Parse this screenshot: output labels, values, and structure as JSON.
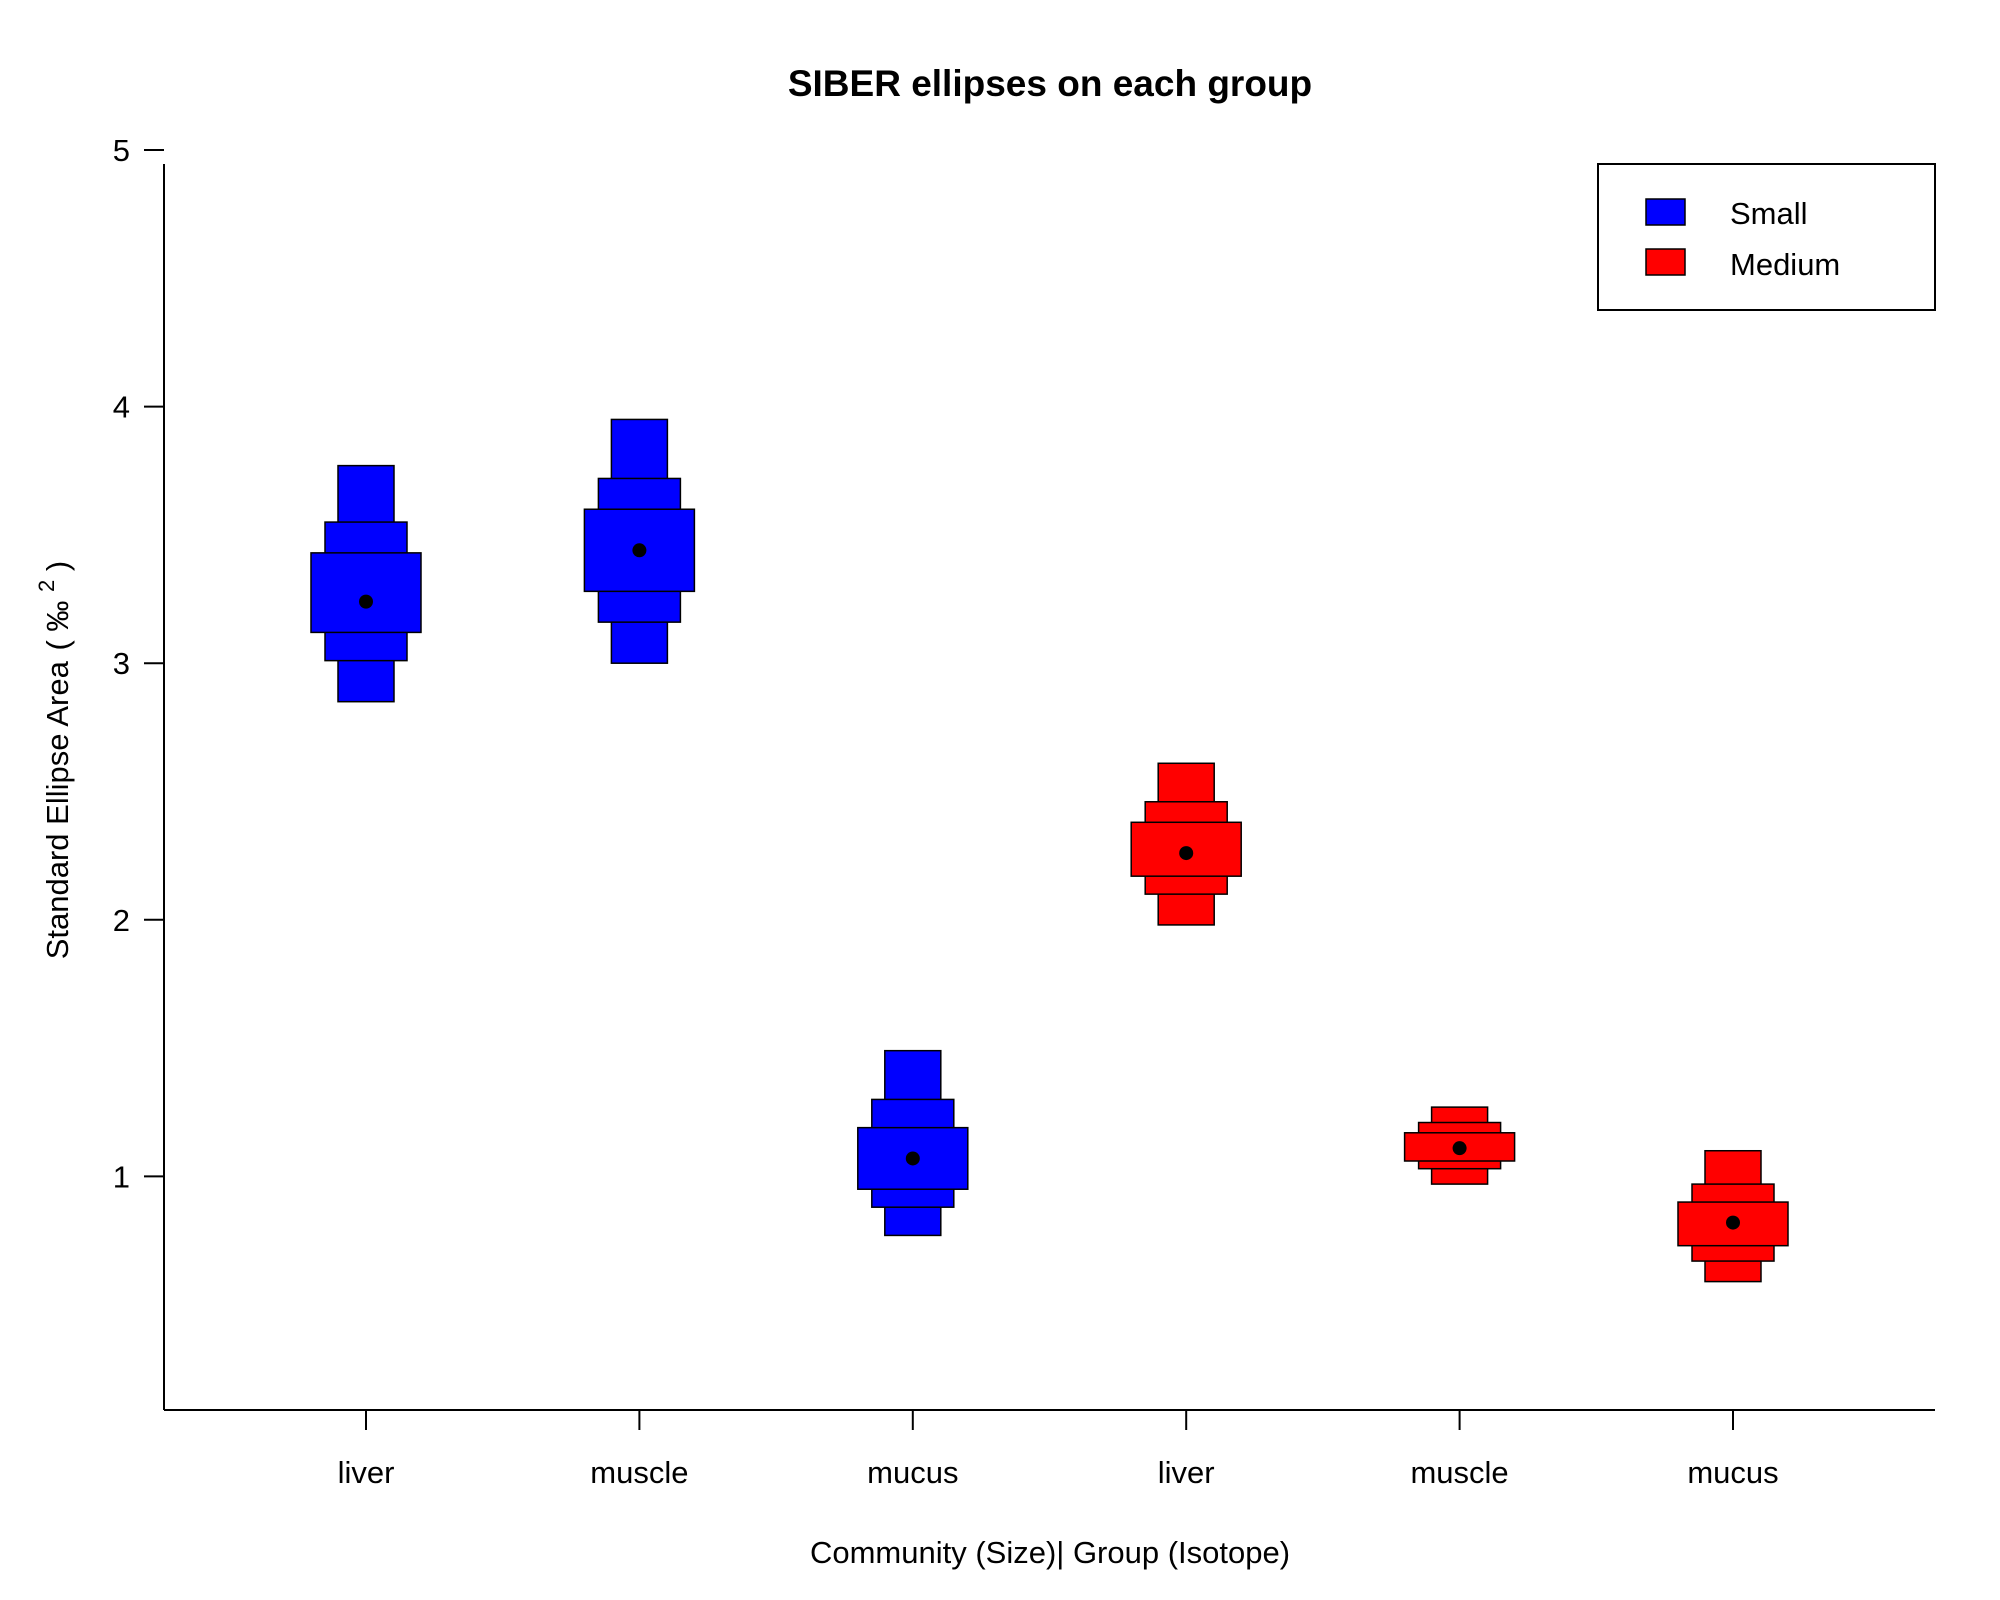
{
  "chart_data": {
    "type": "box",
    "title": "SIBER ellipses on each group",
    "xlabel": "Community (Size)| Group (Isotope)",
    "ylabel_main": "Standard Ellipse Area",
    "ylabel_unit_open": "(",
    "ylabel_unit": "‰",
    "ylabel_unit_sup": "2",
    "ylabel_unit_close": ")",
    "ylim": [
      0.3,
      5.15
    ],
    "yticks": [
      "1",
      "2",
      "3",
      "4",
      "5"
    ],
    "categories": [
      "liver",
      "muscle",
      "mucus",
      "liver",
      "muscle",
      "mucus"
    ],
    "legend": {
      "position": "top-right",
      "entries": [
        {
          "name": "Small",
          "color": "#0000ff"
        },
        {
          "name": "Medium",
          "color": "#ff0000"
        }
      ]
    },
    "series": [
      {
        "name": "Small",
        "color": "#0000ff",
        "groups": [
          {
            "category": "liver",
            "mode": 3.24,
            "ci95": [
              2.85,
              3.77
            ],
            "ci75": [
              3.01,
              3.55
            ],
            "ci50": [
              3.12,
              3.43
            ]
          },
          {
            "category": "muscle",
            "mode": 3.44,
            "ci95": [
              3.0,
              3.95
            ],
            "ci75": [
              3.16,
              3.72
            ],
            "ci50": [
              3.28,
              3.6
            ]
          },
          {
            "category": "mucus",
            "mode": 1.07,
            "ci95": [
              0.77,
              1.49
            ],
            "ci75": [
              0.88,
              1.3
            ],
            "ci50": [
              0.95,
              1.19
            ]
          }
        ]
      },
      {
        "name": "Medium",
        "color": "#ff0000",
        "groups": [
          {
            "category": "liver",
            "mode": 2.26,
            "ci95": [
              1.98,
              2.61
            ],
            "ci75": [
              2.1,
              2.46
            ],
            "ci50": [
              2.17,
              2.38
            ]
          },
          {
            "category": "muscle",
            "mode": 1.11,
            "ci95": [
              0.97,
              1.27
            ],
            "ci75": [
              1.03,
              1.21
            ],
            "ci50": [
              1.06,
              1.17
            ]
          },
          {
            "category": "mucus",
            "mode": 0.82,
            "ci95": [
              0.59,
              1.1
            ],
            "ci75": [
              0.67,
              0.97
            ],
            "ci50": [
              0.73,
              0.9
            ]
          }
        ]
      }
    ]
  }
}
